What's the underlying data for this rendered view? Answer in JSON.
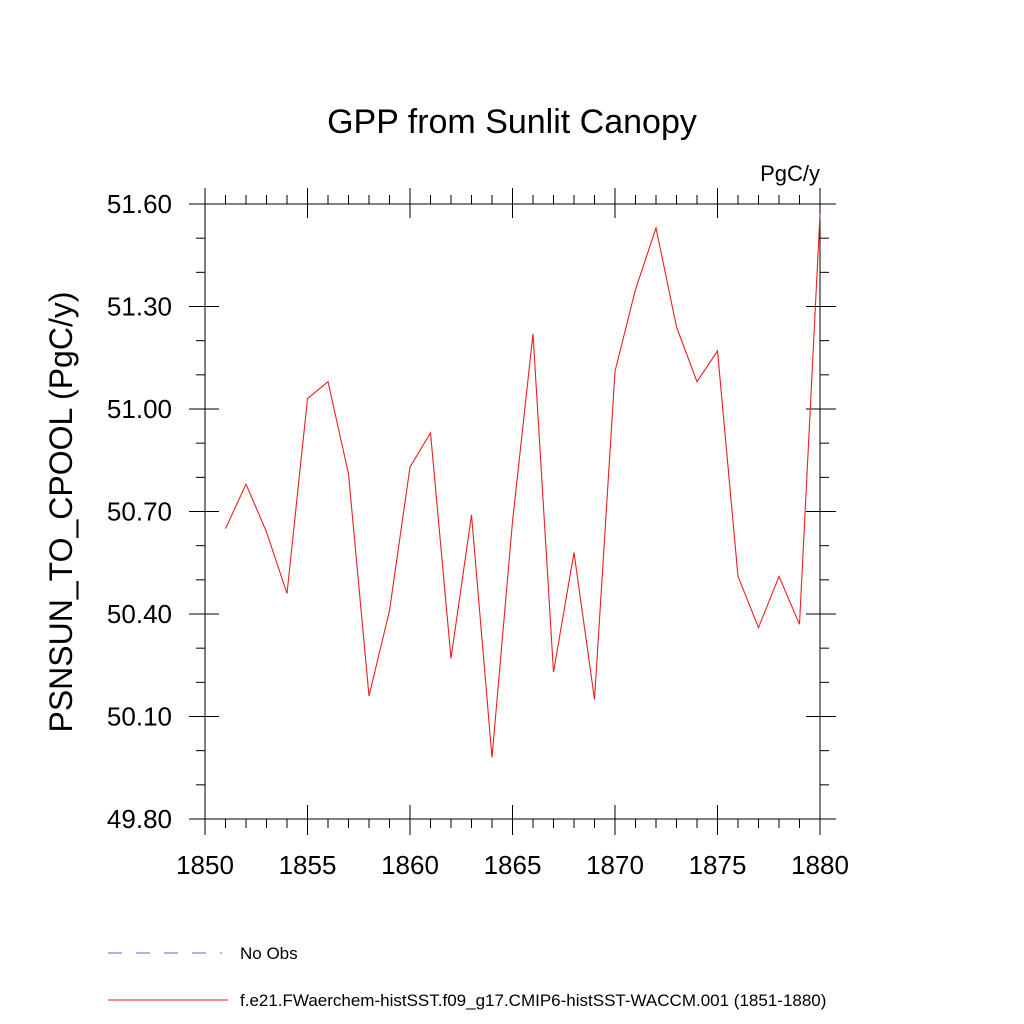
{
  "chart_data": {
    "type": "line",
    "title": "GPP from Sunlit Canopy",
    "units_label": "PgC/y",
    "ylabel": "PSNSUN_TO_CPOOL  (PgC/y)",
    "xlabel": "",
    "xlim": [
      1850,
      1880
    ],
    "ylim": [
      49.8,
      51.6
    ],
    "x_ticks": [
      "1850",
      "1855",
      "1860",
      "1865",
      "1870",
      "1875",
      "1880"
    ],
    "y_ticks": [
      "49.80",
      "50.10",
      "50.40",
      "50.70",
      "51.00",
      "51.30",
      "51.60"
    ],
    "grid": false,
    "legend": {
      "placement": "bottom-left",
      "entries": [
        "No Obs",
        "f.e21.FWaerchem-histSST.f09_g17.CMIP6-histSST-WACCM.001 (1851-1880)"
      ]
    },
    "colors": {
      "model": "#e8201f",
      "obs": "#8a80c8"
    },
    "series": [
      {
        "name": "f.e21.FWaerchem-histSST.f09_g17.CMIP6-histSST-WACCM.001 (1851-1880)",
        "x": [
          1851,
          1852,
          1853,
          1854,
          1855,
          1856,
          1857,
          1858,
          1859,
          1860,
          1861,
          1862,
          1863,
          1864,
          1865,
          1866,
          1867,
          1868,
          1869,
          1870,
          1871,
          1872,
          1873,
          1874,
          1875,
          1876,
          1877,
          1878,
          1879,
          1880
        ],
        "values": [
          50.65,
          50.78,
          50.64,
          50.46,
          51.03,
          51.08,
          50.81,
          50.16,
          50.41,
          50.83,
          50.93,
          50.27,
          50.69,
          49.98,
          50.67,
          51.22,
          50.23,
          50.58,
          50.15,
          51.11,
          51.35,
          51.53,
          51.24,
          51.08,
          51.17,
          50.51,
          50.36,
          50.51,
          50.37,
          51.57
        ]
      },
      {
        "name": "No Obs",
        "x": [],
        "values": []
      }
    ]
  }
}
